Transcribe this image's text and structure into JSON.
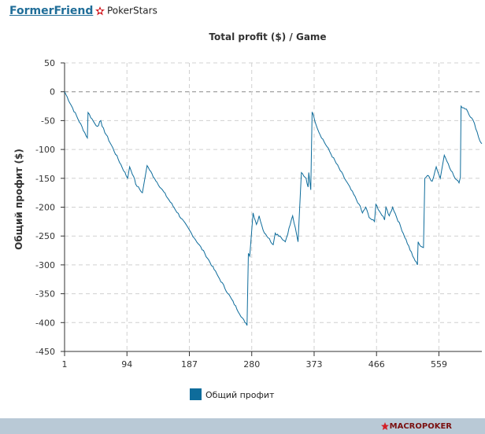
{
  "header": {
    "username": "FormerFriend",
    "site": "PokerStars"
  },
  "footer": {
    "brand": "MACROPOKER"
  },
  "colors": {
    "series": "#0e6c9b",
    "grid": "#d0d0d0",
    "zero": "#888888",
    "footer": "#b9c9d6"
  },
  "chart_data": {
    "type": "line",
    "title": "Total profit ($) / Game",
    "xlabel": "",
    "ylabel": "Общий профит ($)",
    "xlim": [
      1,
      623
    ],
    "ylim": [
      -450,
      50
    ],
    "x_ticks": [
      1,
      94,
      187,
      280,
      373,
      466,
      559
    ],
    "y_ticks": [
      50,
      0,
      -50,
      -100,
      -150,
      -200,
      -250,
      -300,
      -350,
      -400,
      -450
    ],
    "grid": true,
    "legend_position": "bottom",
    "series": [
      {
        "name": "Общий профит",
        "color": "#0e6c9b",
        "points": [
          [
            1,
            0
          ],
          [
            35,
            -80
          ],
          [
            36,
            -36
          ],
          [
            46,
            -55
          ],
          [
            50,
            -60
          ],
          [
            55,
            -50
          ],
          [
            57,
            -60
          ],
          [
            95,
            -150
          ],
          [
            98,
            -130
          ],
          [
            104,
            -147
          ],
          [
            107,
            -160
          ],
          [
            117,
            -175
          ],
          [
            124,
            -128
          ],
          [
            135,
            -150
          ],
          [
            210,
            -280
          ],
          [
            230,
            -320
          ],
          [
            270,
            -400
          ],
          [
            273,
            -405
          ],
          [
            275,
            -280
          ],
          [
            277,
            -285
          ],
          [
            282,
            -210
          ],
          [
            287,
            -230
          ],
          [
            291,
            -215
          ],
          [
            297,
            -240
          ],
          [
            312,
            -265
          ],
          [
            315,
            -245
          ],
          [
            322,
            -250
          ],
          [
            330,
            -260
          ],
          [
            341,
            -215
          ],
          [
            349,
            -260
          ],
          [
            354,
            -140
          ],
          [
            361,
            -150
          ],
          [
            364,
            -165
          ],
          [
            365,
            -140
          ],
          [
            368,
            -170
          ],
          [
            370,
            -35
          ],
          [
            380,
            -70
          ],
          [
            440,
            -195
          ],
          [
            445,
            -210
          ],
          [
            450,
            -200
          ],
          [
            455,
            -218
          ],
          [
            463,
            -225
          ],
          [
            465,
            -195
          ],
          [
            472,
            -210
          ],
          [
            478,
            -222
          ],
          [
            480,
            -200
          ],
          [
            485,
            -215
          ],
          [
            490,
            -200
          ],
          [
            520,
            -285
          ],
          [
            527,
            -300
          ],
          [
            528,
            -260
          ],
          [
            530,
            -265
          ],
          [
            536,
            -270
          ],
          [
            538,
            -150
          ],
          [
            542,
            -145
          ],
          [
            549,
            -155
          ],
          [
            555,
            -130
          ],
          [
            561,
            -150
          ],
          [
            567,
            -110
          ],
          [
            573,
            -125
          ],
          [
            583,
            -150
          ],
          [
            589,
            -158
          ],
          [
            591,
            -148
          ],
          [
            592,
            -25
          ],
          [
            600,
            -30
          ],
          [
            612,
            -55
          ],
          [
            620,
            -85
          ],
          [
            623,
            -90
          ]
        ]
      }
    ]
  }
}
